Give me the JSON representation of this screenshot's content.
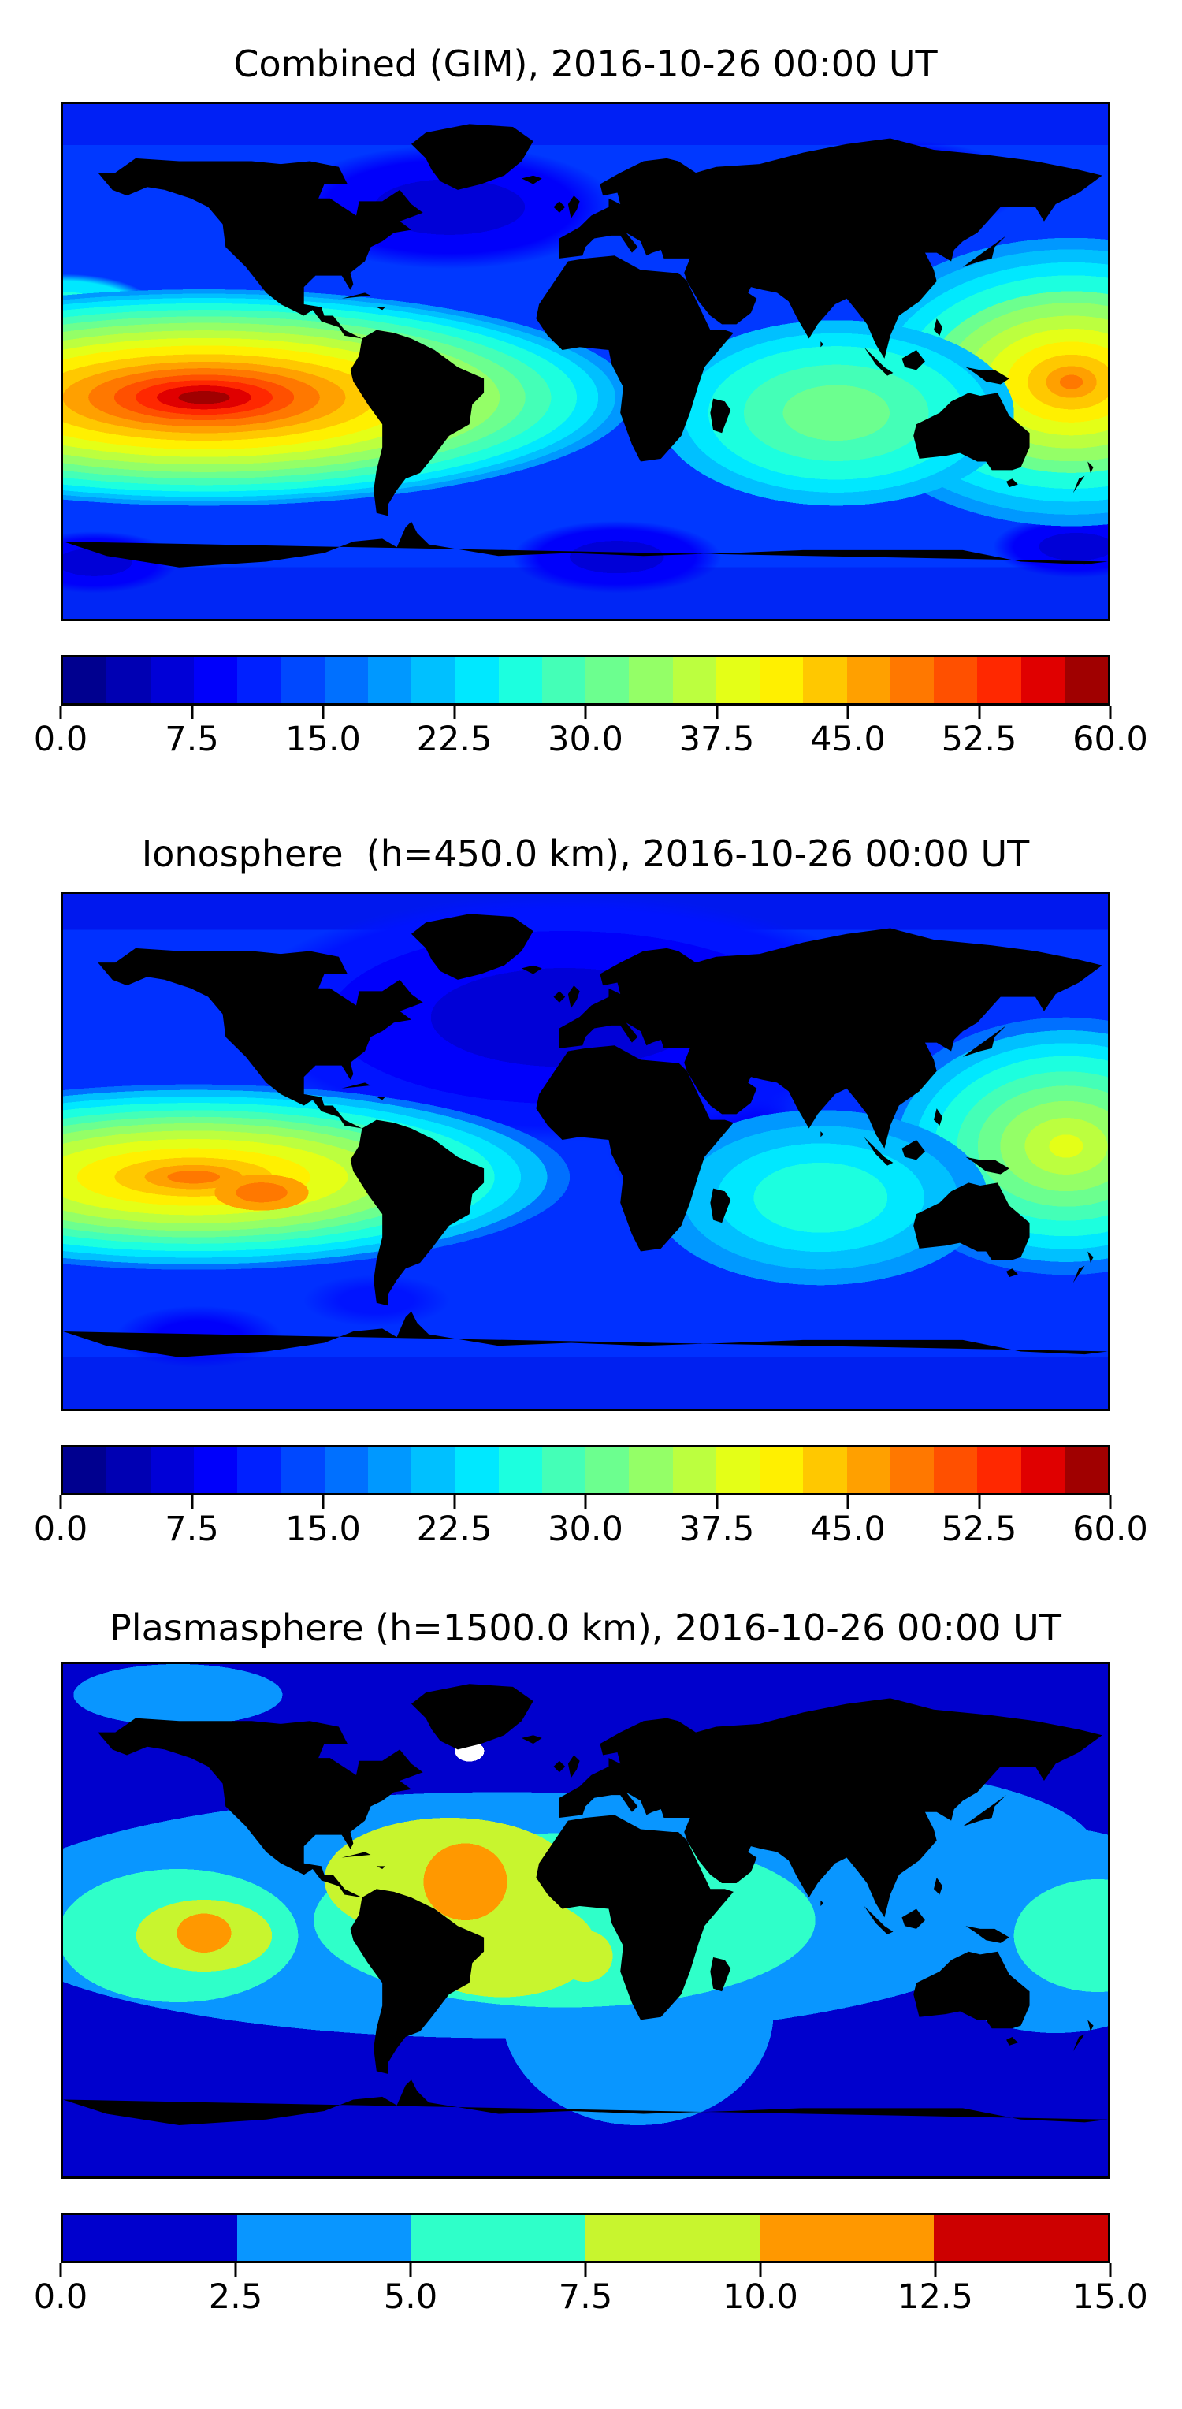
{
  "figure": {
    "background": "#ffffff",
    "colormap_name": "jet",
    "date_shown": "2016-10-26 00:00 UT"
  },
  "panels": [
    {
      "title": "Combined (GIM), 2016-10-26 00:00 UT",
      "colorbar": {
        "ticks": [
          "0.0",
          "7.5",
          "15.0",
          "22.5",
          "30.0",
          "37.5",
          "45.0",
          "52.5",
          "60.0"
        ],
        "colors": [
          "#00008F",
          "#0000B3",
          "#0000D7",
          "#0000FB",
          "#0020FF",
          "#0048FF",
          "#0070FF",
          "#0098FF",
          "#00C0FF",
          "#00E8FF",
          "#1CFFDF",
          "#44FFB7",
          "#6CFF8F",
          "#94FF67",
          "#BCFF3F",
          "#E4FF17",
          "#FFF000",
          "#FFC800",
          "#FFA000",
          "#FF7800",
          "#FF5000",
          "#FF2800",
          "#E00000",
          "#A00000"
        ]
      },
      "map": {
        "base_color": "#0038FF",
        "layers": [
          {
            "type": "radial",
            "x": "13.5%",
            "y": "57%",
            "rx": "41%",
            "ry": "21%",
            "stops": "#A00000 0% 6%, #E00000 6% 11%, #FF2800 11% 16%, #FF5000 16% 21%, #FF7800 21% 27%, #FFA000 27% 33%, #FFC800 33% 40%, #FFF000 40% 48%, #E4FF17 48% 55%, #BCFF3F 55% 62%, #94FF67 62% 69%, #6CFF8F 69% 75%, #44FFB7 75% 81%, #1CFFDF 81% 87%, #00E8FF 87% 92%, #00C0FF 92% 96%, #0098FF 96% 100%, rgba(0,152,255,0) 100%"
          },
          {
            "type": "radial",
            "x": "74%",
            "y": "60%",
            "rx": "17%",
            "ry": "18%",
            "stops": "#6CFF8F 0% 30%, #44FFB7 30% 52%, #1CFFDF 52% 72%, #00E8FF 72% 86%, #00C0FF 86% 100%, rgba(0,192,255,0) 100%"
          },
          {
            "type": "radial",
            "x": "96.5%",
            "y": "54%",
            "rx": "22%",
            "ry": "28%",
            "stops": "#FF7800 0% 5%, #FFA000 5% 11%, #FFC800 11% 19%, #FFF000 19% 28%, #E4FF17 28% 37%, #BCFF3F 37% 46%, #94FF67 46% 55%, #6CFF8F 55% 63%, #1CFFDF 63% 74%, #00E8FF 74% 83%, #00C0FF 83% 92%, #0098FF 92% 100%, rgba(0,152,255,0) 100%"
          },
          {
            "type": "radial",
            "x": "83%",
            "y": "59%",
            "rx": "30%",
            "ry": "10%",
            "stops": "#1CFFDF 0% 45%, #00E8FF 45% 70%, #00C0FF 70% 88%, rgba(0,192,255,0) 100%"
          },
          {
            "type": "radial",
            "x": "0%",
            "y": "40%",
            "rx": "9%",
            "ry": "7%",
            "stops": "#1CFFDF 0% 50%, #00E8FF 50% 80%, rgba(0,232,255,0) 100%"
          },
          {
            "type": "radial",
            "x": "37%",
            "y": "20%",
            "rx": "16%",
            "ry": "12%",
            "stops": "#0000D7 0% 45%, #0000FB 45% 75%, rgba(0,0,251,0) 100%"
          },
          {
            "type": "radial",
            "x": "80%",
            "y": "16%",
            "rx": "12%",
            "ry": "9%",
            "stops": "#0000D7 0% 45%, #0000FB 45% 75%, rgba(0,0,251,0) 100%"
          },
          {
            "type": "radial",
            "x": "53%",
            "y": "88%",
            "rx": "10%",
            "ry": "7%",
            "stops": "#0000D7 0% 45%, #0000FB 45% 75%, rgba(0,0,251,0) 100%"
          },
          {
            "type": "radial",
            "x": "3%",
            "y": "89%",
            "rx": "8%",
            "ry": "6%",
            "stops": "#0000D7 0% 45%, #0000FB 45% 75%, rgba(0,0,251,0) 100%"
          },
          {
            "type": "radial",
            "x": "97%",
            "y": "86%",
            "rx": "8%",
            "ry": "6%",
            "stops": "#0000D7 0% 45%, #0000FB 45% 75%, rgba(0,0,251,0) 100%"
          },
          {
            "type": "linear",
            "angle": "180deg",
            "stops": "#0020F5 0% 8%, #0038FF 8% 90%, #0026F5 90% 100%"
          }
        ]
      }
    },
    {
      "title": "Ionosphere  (h=450.0 km), 2016-10-26 00:00 UT",
      "colorbar": {
        "ticks": [
          "0.0",
          "7.5",
          "15.0",
          "22.5",
          "30.0",
          "37.5",
          "45.0",
          "52.5",
          "60.0"
        ],
        "colors": [
          "#00008F",
          "#0000B3",
          "#0000D7",
          "#0000FB",
          "#0020FF",
          "#0048FF",
          "#0070FF",
          "#0098FF",
          "#00C0FF",
          "#00E8FF",
          "#1CFFDF",
          "#44FFB7",
          "#6CFF8F",
          "#94FF67",
          "#BCFF3F",
          "#E4FF17",
          "#FFF000",
          "#FFC800",
          "#FFA000",
          "#FF7800",
          "#FF5000",
          "#FF2800",
          "#E00000",
          "#A00000"
        ]
      },
      "map": {
        "base_color": "#0030FF",
        "layers": [
          {
            "type": "radial",
            "x": "19%",
            "y": "58%",
            "rx": "4.5%",
            "ry": "3.5%",
            "stops": "#FF7800 0% 55%, #FFA000 55% 100%, rgba(255,160,0,0) 100%"
          },
          {
            "type": "radial",
            "x": "12.5%",
            "y": "55%",
            "rx": "36%",
            "ry": "18%",
            "stops": "#FF7800 0% 7%, #FFA000 7% 13%, #FFC800 13% 21%, #FFF000 21% 31%, #E4FF17 31% 41%, #BCFF3F 41% 50%, #94FF67 50% 58%, #6CFF8F 58% 65%, #44FFB7 65% 72%, #1CFFDF 72% 80%, #00E8FF 80% 87%, #00C0FF 87% 94%, #0070FF 94% 100%, rgba(0,112,255,0) 100%"
          },
          {
            "type": "radial",
            "x": "72.5%",
            "y": "59%",
            "rx": "16%",
            "ry": "17%",
            "stops": "#1CFFDF 0% 40%, #00E8FF 40% 62%, #00C0FF 62% 82%, #0098FF 82% 100%, rgba(0,152,255,0) 100%"
          },
          {
            "type": "radial",
            "x": "96%",
            "y": "49%",
            "rx": "18%",
            "ry": "25%",
            "stops": "#E4FF17 0% 9%, #BCFF3F 9% 22%, #94FF67 22% 35%, #6CFF8F 35% 47%, #44FFB7 47% 58%, #1CFFDF 58% 70%, #00E8FF 70% 80%, #00C0FF 80% 90%, #0070FF 90% 100%, rgba(0,112,255,0) 100%"
          },
          {
            "type": "radial",
            "x": "48%",
            "y": "24%",
            "rx": "32%",
            "ry": "24%",
            "stops": "#0000D7 0% 40%, #0000FB 40% 70%, #0014FF 70% 88%, rgba(0,20,255,0) 100%"
          },
          {
            "type": "radial",
            "x": "62%",
            "y": "48%",
            "rx": "10%",
            "ry": "16%",
            "stops": "#0000FB 0% 55%, rgba(0,0,251,0) 100%"
          },
          {
            "type": "radial",
            "x": "13%",
            "y": "86%",
            "rx": "8%",
            "ry": "6%",
            "stops": "#0000FB 0% 50%, rgba(0,0,251,0) 100%"
          },
          {
            "type": "radial",
            "x": "30%",
            "y": "79%",
            "rx": "7%",
            "ry": "5%",
            "stops": "#0014FF 0% 50%, rgba(0,20,255,0) 100%"
          },
          {
            "type": "linear",
            "angle": "180deg",
            "stops": "#0018EE 0% 7%, #0030FF 7% 90%, #0020F0 90% 100%"
          }
        ]
      }
    },
    {
      "title": "Plasmasphere (h=1500.0 km), 2016-10-26 00:00 UT",
      "colorbar": {
        "ticks": [
          "0.0",
          "2.5",
          "5.0",
          "7.5",
          "10.0",
          "12.5",
          "15.0"
        ],
        "colors": [
          "#0000CD",
          "#0996FF",
          "#2FFFC9",
          "#C8F52E",
          "#FF9800",
          "#CD0000"
        ]
      },
      "map": {
        "base_color": "#0000CD",
        "layers": [
          {
            "type": "radial",
            "x": "38.9%",
            "y": "17%",
            "rx": "1.4%",
            "ry": "2%",
            "stops": "#FFFFFF 0% 100%, rgba(255,255,255,0) 100%"
          },
          {
            "type": "radial",
            "x": "38.5%",
            "y": "42.5%",
            "rx": "4%",
            "ry": "7.5%",
            "stops": "#FF9800 0% 100%, rgba(255,152,0,0) 100%"
          },
          {
            "type": "radial",
            "x": "13.5%",
            "y": "52.5%",
            "rx": "2.6%",
            "ry": "3.8%",
            "stops": "#FF9800 0% 100%, rgba(255,152,0,0) 100%"
          },
          {
            "type": "radial",
            "x": "37%",
            "y": "42%",
            "rx": "12%",
            "ry": "12%",
            "stops": "#C8F52E 0% 100%, rgba(200,245,46,0) 100%"
          },
          {
            "type": "radial",
            "x": "42%",
            "y": "55%",
            "rx": "9%",
            "ry": "10%",
            "stops": "#C8F52E 0% 100%, rgba(200,245,46,0) 100%"
          },
          {
            "type": "radial",
            "x": "13.5%",
            "y": "53%",
            "rx": "6.5%",
            "ry": "7%",
            "stops": "#C8F52E 0% 100%, rgba(200,245,46,0) 100%"
          },
          {
            "type": "radial",
            "x": "50%",
            "y": "57%",
            "rx": "2.6%",
            "ry": "5%",
            "stops": "#C8F52E 0% 100%, rgba(200,245,46,0) 100%"
          },
          {
            "type": "radial",
            "x": "48%",
            "y": "50%",
            "rx": "24%",
            "ry": "17%",
            "stops": "#2FFFC9 0% 100%, rgba(47,255,201,0) 100%"
          },
          {
            "type": "radial",
            "x": "11%",
            "y": "53%",
            "rx": "11.5%",
            "ry": "13%",
            "stops": "#2FFFC9 0% 100%, rgba(47,255,201,0) 100%"
          },
          {
            "type": "radial",
            "x": "99%",
            "y": "53%",
            "rx": "8%",
            "ry": "11%",
            "stops": "#2FFFC9 0% 100%, rgba(47,255,201,0) 100%"
          },
          {
            "type": "radial",
            "x": "42%",
            "y": "49%",
            "rx": "50%",
            "ry": "24%",
            "stops": "#0996FF 0% 100%, rgba(9,150,255,0) 100%"
          },
          {
            "type": "radial",
            "x": "72%",
            "y": "37%",
            "rx": "27%",
            "ry": "17%",
            "stops": "#0996FF 0% 100%, rgba(9,150,255,0) 100%"
          },
          {
            "type": "radial",
            "x": "55%",
            "y": "68%",
            "rx": "13%",
            "ry": "22%",
            "stops": "#0996FF 0% 100%, rgba(9,150,255,0) 100%"
          },
          {
            "type": "radial",
            "x": "95%",
            "y": "52%",
            "rx": "14%",
            "ry": "20%",
            "stops": "#0996FF 0% 100%, rgba(9,150,255,0) 100%"
          },
          {
            "type": "radial",
            "x": "11%",
            "y": "6%",
            "rx": "10%",
            "ry": "6%",
            "stops": "#0996FF 0% 100%, rgba(9,150,255,0) 100%"
          }
        ]
      }
    }
  ],
  "chart_data": [
    {
      "type": "heatmap",
      "subtype": "filled-contour-world-map",
      "title": "Combined (GIM), 2016-10-26 00:00 UT",
      "projection": "equirectangular, lon -180..180, lat -90..90, coastlines drawn in black",
      "colorbar": {
        "orientation": "horizontal",
        "colormap": "jet",
        "vmin": 0.0,
        "vmax": 60.0,
        "level_step": 2.5,
        "n_segments": 24,
        "ticks": [
          0.0,
          7.5,
          15.0,
          22.5,
          30.0,
          37.5,
          45.0,
          52.5,
          60.0
        ]
      },
      "features": [
        {
          "name": "primary maximum",
          "approx_lon": -131,
          "approx_lat": -11,
          "peak_value": 57,
          "note": "large east-west elongated hotspot in equatorial South Pacific, dark-red core"
        },
        {
          "name": "secondary maximum",
          "approx_lon": 167,
          "approx_lat": -7,
          "peak_value": 46,
          "note": "orange-yellow hotspot in western Pacific near New Guinea, touches right map edge"
        },
        {
          "name": "moderate region",
          "approx_lon": 87,
          "approx_lat": -18,
          "value_range": [
            25,
            32.5
          ],
          "note": "green/cyan values over South America and tropical Atlantic"
        },
        {
          "name": "minimum",
          "approx_lon": -47,
          "approx_lat": 54,
          "value_range": [
            2.5,
            7.5
          ],
          "note": "dark navy low over Hudson Bay / North Atlantic"
        },
        {
          "name": "background",
          "value_range": [
            7.5,
            15
          ],
          "note": "blue mid/high latitudes, darker patches near poles"
        }
      ]
    },
    {
      "type": "heatmap",
      "subtype": "filled-contour-world-map",
      "title": "Ionosphere  (h=450.0 km), 2016-10-26 00:00 UT",
      "projection": "equirectangular, lon -180..180, lat -90..90, coastlines drawn in black",
      "colorbar": {
        "orientation": "horizontal",
        "colormap": "jet",
        "vmin": 0.0,
        "vmax": 60.0,
        "level_step": 2.5,
        "n_segments": 24,
        "ticks": [
          0.0,
          7.5,
          15.0,
          22.5,
          30.0,
          37.5,
          45.0,
          52.5,
          60.0
        ]
      },
      "features": [
        {
          "name": "primary maximum",
          "approx_lon": -135,
          "approx_lat": -9,
          "peak_value": 47,
          "note": "orange double-core hotspot in equatorial South Pacific (two cores ~25 deg apart in longitude)"
        },
        {
          "name": "secondary maximum",
          "approx_lon": 166,
          "approx_lat": 2,
          "peak_value": 36,
          "note": "yellow-green hotspot in western Pacific, touches right map edge"
        },
        {
          "name": "moderate region",
          "approx_lon": -80,
          "approx_lat": -16,
          "value_range": [
            20,
            25
          ],
          "note": "cyan values around eastern South America"
        },
        {
          "name": "minimum",
          "approx_lon": -7,
          "approx_lat": 47,
          "value_range": [
            2.5,
            5
          ],
          "note": "broad dark navy low covering North Atlantic, Europe, North Africa, central Asia"
        },
        {
          "name": "background",
          "value_range": [
            5,
            12.5
          ],
          "note": "blue elsewhere"
        }
      ]
    },
    {
      "type": "heatmap",
      "subtype": "filled-contour-world-map",
      "title": "Plasmasphere (h=1500.0 km), 2016-10-26 00:00 UT",
      "projection": "equirectangular, lon -180..180, lat -90..90, coastlines drawn in black",
      "colorbar": {
        "orientation": "horizontal",
        "colormap": "jet",
        "vmin": 0.0,
        "vmax": 15.0,
        "level_step": 2.5,
        "n_segments": 6,
        "ticks": [
          0.0,
          2.5,
          5.0,
          7.5,
          10.0,
          12.5,
          15.0
        ]
      },
      "features": [
        {
          "name": "maximum 1",
          "approx_lon": -41,
          "approx_lat": 13,
          "value_range": [
            10,
            12.5
          ],
          "note": "orange core over northeastern South America / western tropical Atlantic"
        },
        {
          "name": "maximum 2",
          "approx_lon": -131,
          "approx_lat": -4,
          "value_range": [
            10,
            12.5
          ],
          "note": "small orange core in eastern equatorial Pacific"
        },
        {
          "name": "elevated band",
          "value_range": [
            7.5,
            10
          ],
          "note": "yellow-green over Caribbean, Brazil and west coast of Africa"
        },
        {
          "name": "tropical band",
          "value_range": [
            5,
            7.5
          ],
          "note": "turquoise band across Americas, Atlantic, Africa and far-western Pacific"
        },
        {
          "name": "mid-latitude band",
          "value_range": [
            2.5,
            5
          ],
          "note": "azure wavy band across both hemispheres incl. Asia and Bering region"
        },
        {
          "name": "background",
          "value_range": [
            0,
            2.5
          ],
          "note": "dark blue at high latitudes and southern ocean"
        },
        {
          "name": "masked spot",
          "approx_lon": -40,
          "approx_lat": 59,
          "note": "small white (no-data) patch south of Greenland"
        }
      ]
    }
  ]
}
